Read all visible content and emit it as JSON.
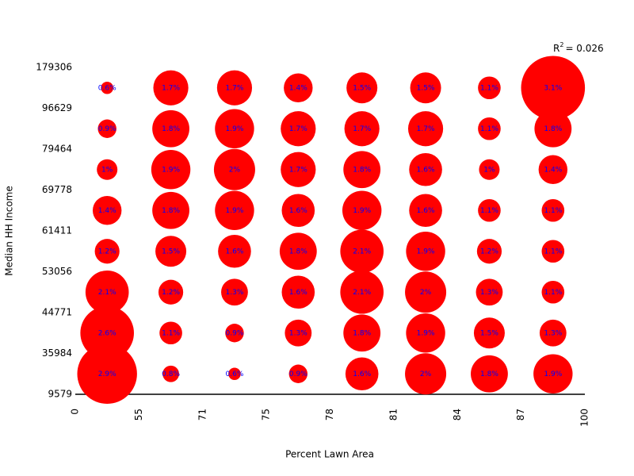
{
  "chart_data": {
    "type": "bubble-grid",
    "x_label": "Percent Lawn Area",
    "y_label": "Median HH Income",
    "x_bin_edges": [
      0,
      55,
      71,
      75,
      78,
      81,
      84,
      87,
      100
    ],
    "y_bin_edges": [
      9579,
      35984,
      44771,
      53056,
      61411,
      69778,
      79464,
      96629,
      179306
    ],
    "color": "#ff0000",
    "label_color": "#0000ff",
    "values": [
      [
        2.9,
        0.8,
        0.6,
        0.9,
        1.6,
        2,
        1.8,
        1.9
      ],
      [
        2.6,
        1.1,
        0.9,
        1.3,
        1.8,
        1.9,
        1.5,
        1.3
      ],
      [
        2.1,
        1.2,
        1.3,
        1.6,
        2.1,
        2,
        1.3,
        1.1
      ],
      [
        1.2,
        1.5,
        1.6,
        1.8,
        2.1,
        1.9,
        1.2,
        1.1
      ],
      [
        1.4,
        1.8,
        1.9,
        1.6,
        1.9,
        1.6,
        1.1,
        1.1
      ],
      [
        1,
        1.9,
        2,
        1.7,
        1.8,
        1.6,
        1,
        1.4
      ],
      [
        0.9,
        1.8,
        1.9,
        1.7,
        1.7,
        1.7,
        1.1,
        1.8
      ],
      [
        0.6,
        1.7,
        1.7,
        1.4,
        1.5,
        1.5,
        1.1,
        3.1
      ]
    ],
    "value_labels": [
      [
        "2.9%",
        "0.8%",
        "0.6%",
        "0.9%",
        "1.6%",
        "2%",
        "1.8%",
        "1.9%"
      ],
      [
        "2.6%",
        "1.1%",
        "0.9%",
        "1.3%",
        "1.8%",
        "1.9%",
        "1.5%",
        "1.3%"
      ],
      [
        "2.1%",
        "1.2%",
        "1.3%",
        "1.6%",
        "2.1%",
        "2%",
        "1.3%",
        "1.1%"
      ],
      [
        "1.2%",
        "1.5%",
        "1.6%",
        "1.8%",
        "2.1%",
        "1.9%",
        "1.2%",
        "1.1%"
      ],
      [
        "1.4%",
        "1.8%",
        "1.9%",
        "1.6%",
        "1.9%",
        "1.6%",
        "1.1%",
        "1.1%"
      ],
      [
        "1%",
        "1.9%",
        "2%",
        "1.7%",
        "1.8%",
        "1.6%",
        "1%",
        "1.4%"
      ],
      [
        "0.9%",
        "1.8%",
        "1.9%",
        "1.7%",
        "1.7%",
        "1.7%",
        "1.1%",
        "1.8%"
      ],
      [
        "0.6%",
        "1.7%",
        "1.7%",
        "1.4%",
        "1.5%",
        "1.5%",
        "1.1%",
        "3.1%"
      ]
    ],
    "annotation": {
      "symbol": "R",
      "superscript": "2",
      "text": "= 0.026"
    }
  }
}
